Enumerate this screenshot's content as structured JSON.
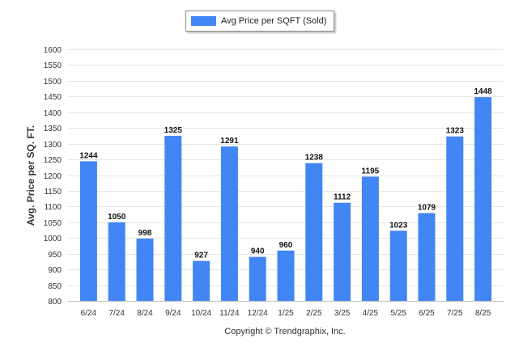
{
  "chart_data": {
    "type": "bar",
    "categories": [
      "6/24",
      "7/24",
      "8/24",
      "9/24",
      "10/24",
      "11/24",
      "12/24",
      "1/25",
      "2/25",
      "3/25",
      "4/25",
      "5/25",
      "6/25",
      "7/25",
      "8/25"
    ],
    "series": [
      {
        "name": "Avg Price per SQFT (Sold)",
        "values": [
          1244,
          1050,
          998,
          1325,
          927,
          1291,
          940,
          960,
          1238,
          1112,
          1195,
          1023,
          1079,
          1323,
          1448
        ]
      }
    ],
    "ylabel": "Avg. Price per SQ. FT.",
    "xlabel": "",
    "ylim": [
      800,
      1600
    ],
    "yticks": [
      800,
      850,
      900,
      950,
      1000,
      1050,
      1100,
      1150,
      1200,
      1250,
      1300,
      1350,
      1400,
      1450,
      1500,
      1550,
      1600
    ],
    "grid": true,
    "legend": "top-center",
    "bar_color": "#4285f4",
    "footer": "Copyright © Trendgraphix, Inc."
  }
}
